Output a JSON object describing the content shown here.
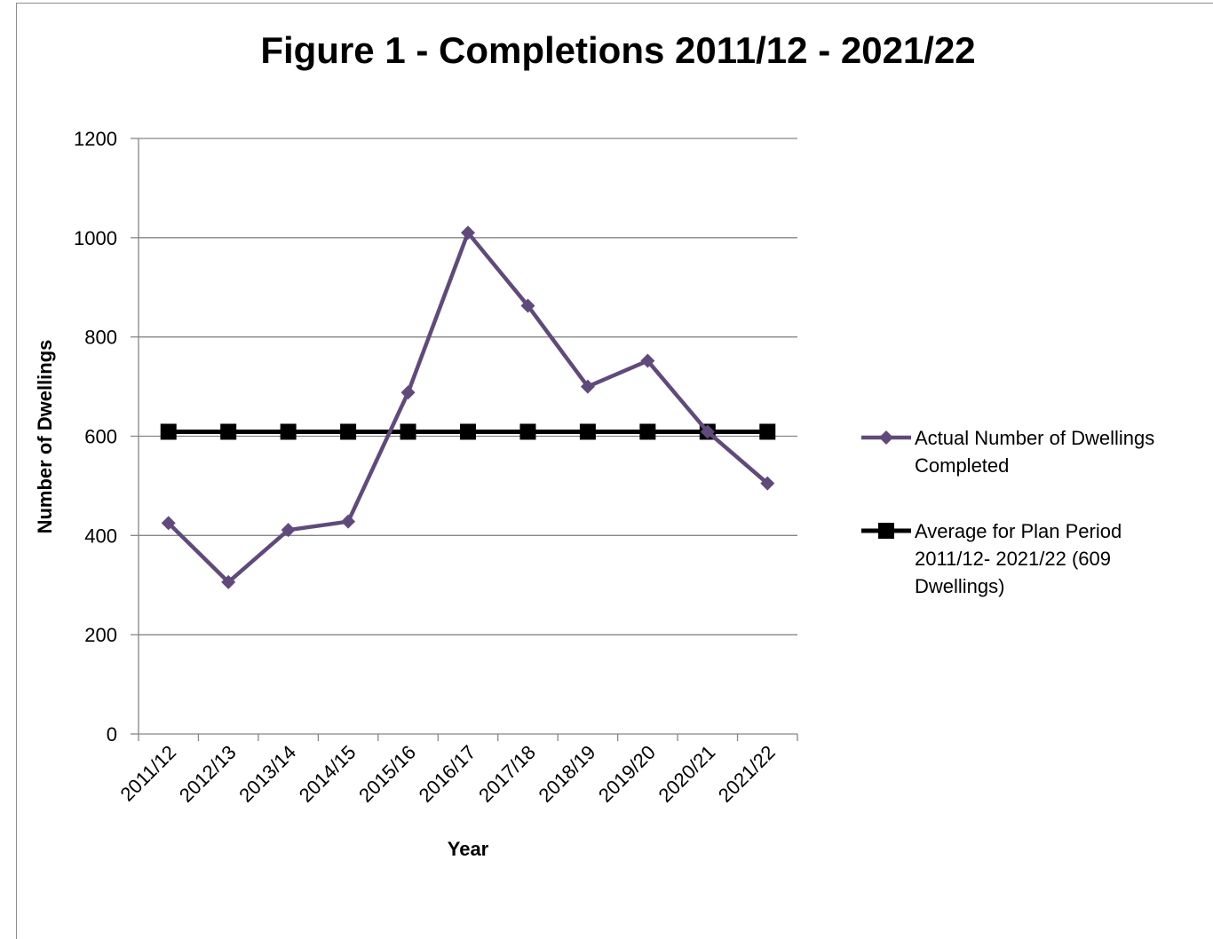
{
  "chart_data": {
    "type": "line",
    "title": "Figure 1 - Completions 2011/12 - 2021/22",
    "xlabel": "Year",
    "ylabel": "Number of Dwellings",
    "ylim": [
      0,
      1200
    ],
    "yticks": [
      "0",
      "200",
      "400",
      "600",
      "800",
      "1000",
      "1200"
    ],
    "grid": "horizontal",
    "legend_position": "right",
    "categories": [
      "2011/12",
      "2012/13",
      "2013/14",
      "2014/15",
      "2015/16",
      "2016/17",
      "2017/18",
      "2018/19",
      "2019/20",
      "2020/21",
      "2021/22"
    ],
    "series": [
      {
        "name": "Actual Number of Dwellings Completed",
        "legend_lines": [
          "Actual Number of Dwellings",
          "Completed"
        ],
        "color": "#604a7b",
        "marker": "diamond",
        "values": [
          425,
          306,
          411,
          428,
          688,
          1010,
          863,
          700,
          752,
          609,
          505
        ]
      },
      {
        "name": "Average for Plan Period 2011/12- 2021/22 (609 Dwellings)",
        "legend_lines": [
          "Average for Plan Period",
          "2011/12- 2021/22 (609",
          "Dwellings)"
        ],
        "color": "#000000",
        "marker": "square",
        "values": [
          609,
          609,
          609,
          609,
          609,
          609,
          609,
          609,
          609,
          609,
          609
        ]
      }
    ]
  }
}
